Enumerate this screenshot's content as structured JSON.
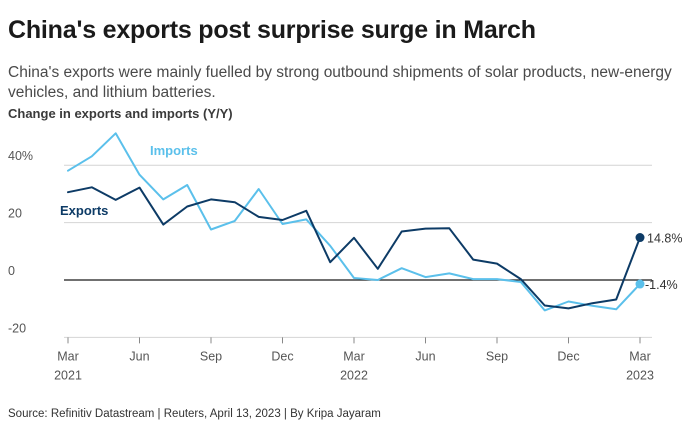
{
  "header": {
    "title": "China's exports post surprise surge in March",
    "subtitle": "China's exports were mainly fuelled by strong outbound shipments of solar products, new-energy vehicles, and lithium batteries."
  },
  "footer": {
    "source": "Source: Refinitiv Datastream | Reuters, April 13, 2023 | By Kripa Jayaram"
  },
  "chart_data": {
    "type": "line",
    "title": "Change in exports and imports (Y/Y)",
    "ylim": [
      -20,
      50
    ],
    "grid": true,
    "y_ticks": [
      {
        "value": 40,
        "label": "40%"
      },
      {
        "value": 20,
        "label": "20"
      },
      {
        "value": 0,
        "label": "0"
      },
      {
        "value": -20,
        "label": "-20"
      }
    ],
    "x_ticks": [
      {
        "index": 0,
        "label": "Mar",
        "year": "2021"
      },
      {
        "index": 3,
        "label": "Jun",
        "year": ""
      },
      {
        "index": 6,
        "label": "Sep",
        "year": ""
      },
      {
        "index": 9,
        "label": "Dec",
        "year": ""
      },
      {
        "index": 12,
        "label": "Mar",
        "year": "2022"
      },
      {
        "index": 15,
        "label": "Jun",
        "year": ""
      },
      {
        "index": 18,
        "label": "Sep",
        "year": ""
      },
      {
        "index": 21,
        "label": "Dec",
        "year": ""
      },
      {
        "index": 24,
        "label": "Mar",
        "year": "2023"
      }
    ],
    "x": [
      "2021-03",
      "2021-04",
      "2021-05",
      "2021-06",
      "2021-07",
      "2021-08",
      "2021-09",
      "2021-10",
      "2021-11",
      "2021-12",
      "2022-01",
      "2022-02",
      "2022-03",
      "2022-04",
      "2022-05",
      "2022-06",
      "2022-07",
      "2022-08",
      "2022-09",
      "2022-10",
      "2022-11",
      "2022-12",
      "2023-01",
      "2023-02",
      "2023-03"
    ],
    "series": [
      {
        "name": "Exports",
        "color": "#0d3b66",
        "last_label": "14.8%",
        "values": [
          30.6,
          32.3,
          27.9,
          32.2,
          19.3,
          25.6,
          28.1,
          27.1,
          22.0,
          20.9,
          24.1,
          6.2,
          14.7,
          3.9,
          16.9,
          17.9,
          18.0,
          7.1,
          5.7,
          0.3,
          -8.9,
          -9.9,
          -8.1,
          -6.8,
          14.8
        ]
      },
      {
        "name": "Imports",
        "color": "#5bc0eb",
        "last_label": "-1.4%",
        "values": [
          38.1,
          43.1,
          51.1,
          36.7,
          28.1,
          33.1,
          17.6,
          20.6,
          31.7,
          19.5,
          21.1,
          11.9,
          0.7,
          0.0,
          4.1,
          1.0,
          2.3,
          0.3,
          0.3,
          -0.7,
          -10.6,
          -7.5,
          -9.0,
          -10.2,
          -1.4
        ]
      }
    ]
  }
}
